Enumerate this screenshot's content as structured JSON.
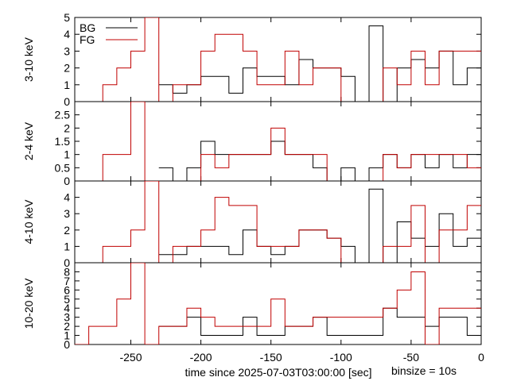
{
  "figure": {
    "xlabel": "time since 2025-07-03T03:00:00 [sec]",
    "note": "binsize = 10s"
  },
  "colors": {
    "BG": "#000000",
    "FG": "#c00000"
  },
  "chart_data": [
    {
      "type": "line",
      "ylabel": "3-10 keV",
      "xlim": [
        -290,
        0
      ],
      "ylim": [
        0,
        5
      ],
      "x_ticks": [
        -250,
        -200,
        -150,
        -100,
        -50,
        0
      ],
      "y_ticks": [
        0,
        1,
        2,
        3,
        4,
        5
      ],
      "y_tick_labels": [
        "0",
        "1",
        "2",
        "3",
        "4",
        "5"
      ],
      "legend": {
        "position": "top-left",
        "entries": [
          "BG",
          "FG"
        ]
      },
      "series": [
        {
          "name": "BG",
          "color": "#000000",
          "points": [
            [
              -230,
              1
            ],
            [
              -220,
              0.5
            ],
            [
              -210,
              1
            ],
            [
              -200,
              1.5
            ],
            [
              -190,
              1.5
            ],
            [
              -180,
              0.5
            ],
            [
              -170,
              2
            ],
            [
              -160,
              1.5
            ],
            [
              -150,
              1.5
            ],
            [
              -140,
              1
            ],
            [
              -130,
              2.5
            ],
            [
              -120,
              2
            ],
            [
              -110,
              2
            ],
            [
              -100,
              1.5
            ],
            [
              -90,
              0
            ],
            [
              -80,
              4.5
            ],
            [
              -70,
              0
            ],
            [
              -60,
              2
            ],
            [
              -50,
              2.5
            ],
            [
              -40,
              2
            ],
            [
              -30,
              3
            ],
            [
              -20,
              1
            ],
            [
              -10,
              2
            ],
            [
              0,
              2
            ]
          ]
        },
        {
          "name": "FG",
          "color": "#c00000",
          "points": [
            [
              -280,
              0
            ],
            [
              -270,
              1
            ],
            [
              -260,
              2
            ],
            [
              -250,
              3
            ],
            [
              -240,
              5
            ],
            [
              -230,
              0
            ],
            [
              -220,
              1
            ],
            [
              -210,
              1
            ],
            [
              -200,
              3
            ],
            [
              -190,
              4
            ],
            [
              -180,
              4
            ],
            [
              -170,
              3
            ],
            [
              -160,
              1
            ],
            [
              -150,
              1
            ],
            [
              -140,
              3
            ],
            [
              -130,
              1
            ],
            [
              -120,
              2
            ],
            [
              -110,
              2
            ],
            [
              -100,
              0
            ],
            [
              -90,
              0
            ],
            [
              -80,
              0
            ],
            [
              -70,
              2
            ],
            [
              -60,
              1
            ],
            [
              -50,
              3
            ],
            [
              -40,
              1
            ],
            [
              -30,
              3
            ],
            [
              -20,
              3
            ],
            [
              -10,
              3
            ],
            [
              0,
              3
            ]
          ]
        }
      ]
    },
    {
      "type": "line",
      "ylabel": "2-4 keV",
      "xlim": [
        -290,
        0
      ],
      "ylim": [
        0,
        3
      ],
      "x_ticks": [
        -250,
        -200,
        -150,
        -100,
        -50,
        0
      ],
      "y_ticks": [
        0,
        0.5,
        1,
        1.5,
        2,
        2.5
      ],
      "y_tick_labels": [
        "0",
        "0.5",
        "1",
        "1.5",
        "2",
        "2.5"
      ],
      "series": [
        {
          "name": "BG",
          "color": "#000000",
          "points": [
            [
              -230,
              0.5
            ],
            [
              -220,
              0
            ],
            [
              -210,
              0.5
            ],
            [
              -200,
              1.5
            ],
            [
              -190,
              1
            ],
            [
              -180,
              1
            ],
            [
              -170,
              1
            ],
            [
              -160,
              1
            ],
            [
              -150,
              1.5
            ],
            [
              -140,
              1
            ],
            [
              -130,
              1
            ],
            [
              -120,
              0.5
            ],
            [
              -110,
              0
            ],
            [
              -100,
              0.5
            ],
            [
              -90,
              0
            ],
            [
              -80,
              0.5
            ],
            [
              -70,
              1
            ],
            [
              -60,
              0.5
            ],
            [
              -50,
              1
            ],
            [
              -40,
              0.5
            ],
            [
              -30,
              1
            ],
            [
              -20,
              0.5
            ],
            [
              -10,
              1
            ],
            [
              0,
              1
            ]
          ]
        },
        {
          "name": "FG",
          "color": "#c00000",
          "points": [
            [
              -280,
              0
            ],
            [
              -270,
              1
            ],
            [
              -260,
              1
            ],
            [
              -250,
              3
            ],
            [
              -240,
              0
            ],
            [
              -230,
              0
            ],
            [
              -220,
              0
            ],
            [
              -210,
              0
            ],
            [
              -200,
              1
            ],
            [
              -190,
              0.5
            ],
            [
              -180,
              1
            ],
            [
              -170,
              1
            ],
            [
              -160,
              1
            ],
            [
              -150,
              2
            ],
            [
              -140,
              1
            ],
            [
              -130,
              1
            ],
            [
              -120,
              1
            ],
            [
              -110,
              0
            ],
            [
              -100,
              0
            ],
            [
              -90,
              0
            ],
            [
              -80,
              0
            ],
            [
              -70,
              1
            ],
            [
              -60,
              0.5
            ],
            [
              -50,
              1
            ],
            [
              -40,
              1
            ],
            [
              -30,
              1
            ],
            [
              -20,
              1
            ],
            [
              -10,
              0.5
            ],
            [
              0,
              0.5
            ]
          ]
        }
      ]
    },
    {
      "type": "line",
      "ylabel": "4-10 keV",
      "xlim": [
        -290,
        0
      ],
      "ylim": [
        0,
        5
      ],
      "x_ticks": [
        -250,
        -200,
        -150,
        -100,
        -50,
        0
      ],
      "y_ticks": [
        0,
        1,
        2,
        3,
        4
      ],
      "y_tick_labels": [
        "0",
        "1",
        "2",
        "3",
        "4"
      ],
      "series": [
        {
          "name": "BG",
          "color": "#000000",
          "points": [
            [
              -230,
              0.5
            ],
            [
              -220,
              0.5
            ],
            [
              -210,
              1
            ],
            [
              -200,
              1
            ],
            [
              -190,
              1
            ],
            [
              -180,
              0.5
            ],
            [
              -170,
              2
            ],
            [
              -160,
              1
            ],
            [
              -150,
              0.5
            ],
            [
              -140,
              1
            ],
            [
              -130,
              2
            ],
            [
              -120,
              2
            ],
            [
              -110,
              1.5
            ],
            [
              -100,
              1
            ],
            [
              -90,
              0
            ],
            [
              -80,
              4.5
            ],
            [
              -70,
              0
            ],
            [
              -60,
              2.5
            ],
            [
              -50,
              1.5
            ],
            [
              -40,
              1
            ],
            [
              -30,
              3
            ],
            [
              -20,
              1
            ],
            [
              -10,
              1.5
            ],
            [
              0,
              1.5
            ]
          ]
        },
        {
          "name": "FG",
          "color": "#c00000",
          "points": [
            [
              -280,
              0
            ],
            [
              -270,
              1
            ],
            [
              -260,
              1
            ],
            [
              -250,
              2
            ],
            [
              -240,
              5
            ],
            [
              -230,
              0
            ],
            [
              -220,
              1
            ],
            [
              -210,
              1
            ],
            [
              -200,
              2
            ],
            [
              -190,
              4
            ],
            [
              -180,
              3.5
            ],
            [
              -170,
              3.5
            ],
            [
              -160,
              1
            ],
            [
              -150,
              1
            ],
            [
              -140,
              1
            ],
            [
              -130,
              2
            ],
            [
              -120,
              2
            ],
            [
              -110,
              1.5
            ],
            [
              -100,
              0
            ],
            [
              -90,
              0
            ],
            [
              -80,
              0
            ],
            [
              -70,
              1
            ],
            [
              -60,
              1
            ],
            [
              -50,
              3.5
            ],
            [
              -40,
              0
            ],
            [
              -30,
              2
            ],
            [
              -20,
              2
            ],
            [
              -10,
              3.5
            ],
            [
              0,
              3.5
            ]
          ]
        }
      ]
    },
    {
      "type": "line",
      "ylabel": "10-20 keV",
      "xlim": [
        -290,
        0
      ],
      "ylim": [
        0,
        9
      ],
      "x_ticks": [
        -250,
        -200,
        -150,
        -100,
        -50,
        0
      ],
      "x_tick_labels": [
        "-250",
        "-200",
        "-150",
        "-100",
        "-50",
        "0"
      ],
      "y_ticks": [
        0,
        1,
        2,
        3,
        4,
        5,
        6,
        7,
        8
      ],
      "y_tick_labels": [
        "0",
        "1",
        "2",
        "3",
        "4",
        "5",
        "6",
        "7",
        "8"
      ],
      "series": [
        {
          "name": "BG",
          "color": "#000000",
          "points": [
            [
              -230,
              2
            ],
            [
              -220,
              2
            ],
            [
              -210,
              3
            ],
            [
              -200,
              1
            ],
            [
              -190,
              1
            ],
            [
              -180,
              1
            ],
            [
              -170,
              3
            ],
            [
              -160,
              1
            ],
            [
              -150,
              1
            ],
            [
              -140,
              2
            ],
            [
              -130,
              2
            ],
            [
              -120,
              3
            ],
            [
              -110,
              1
            ],
            [
              -100,
              1
            ],
            [
              -90,
              1
            ],
            [
              -80,
              1
            ],
            [
              -70,
              4
            ],
            [
              -60,
              3
            ],
            [
              -50,
              3
            ],
            [
              -40,
              2
            ],
            [
              -30,
              3
            ],
            [
              -20,
              3
            ],
            [
              -10,
              1
            ],
            [
              0,
              1
            ]
          ]
        },
        {
          "name": "FG",
          "color": "#c00000",
          "points": [
            [
              -290,
              0
            ],
            [
              -280,
              2
            ],
            [
              -270,
              2
            ],
            [
              -260,
              5
            ],
            [
              -250,
              9
            ],
            [
              -240,
              0
            ],
            [
              -230,
              2
            ],
            [
              -220,
              2
            ],
            [
              -210,
              4
            ],
            [
              -200,
              3
            ],
            [
              -190,
              2
            ],
            [
              -180,
              2
            ],
            [
              -170,
              2
            ],
            [
              -160,
              2
            ],
            [
              -150,
              5
            ],
            [
              -140,
              2
            ],
            [
              -130,
              2
            ],
            [
              -120,
              3
            ],
            [
              -110,
              3
            ],
            [
              -100,
              3
            ],
            [
              -90,
              3
            ],
            [
              -80,
              3
            ],
            [
              -70,
              4
            ],
            [
              -60,
              6
            ],
            [
              -50,
              8
            ],
            [
              -40,
              0
            ],
            [
              -30,
              4
            ],
            [
              -20,
              4
            ],
            [
              -10,
              4
            ],
            [
              0,
              4
            ]
          ]
        }
      ]
    }
  ]
}
